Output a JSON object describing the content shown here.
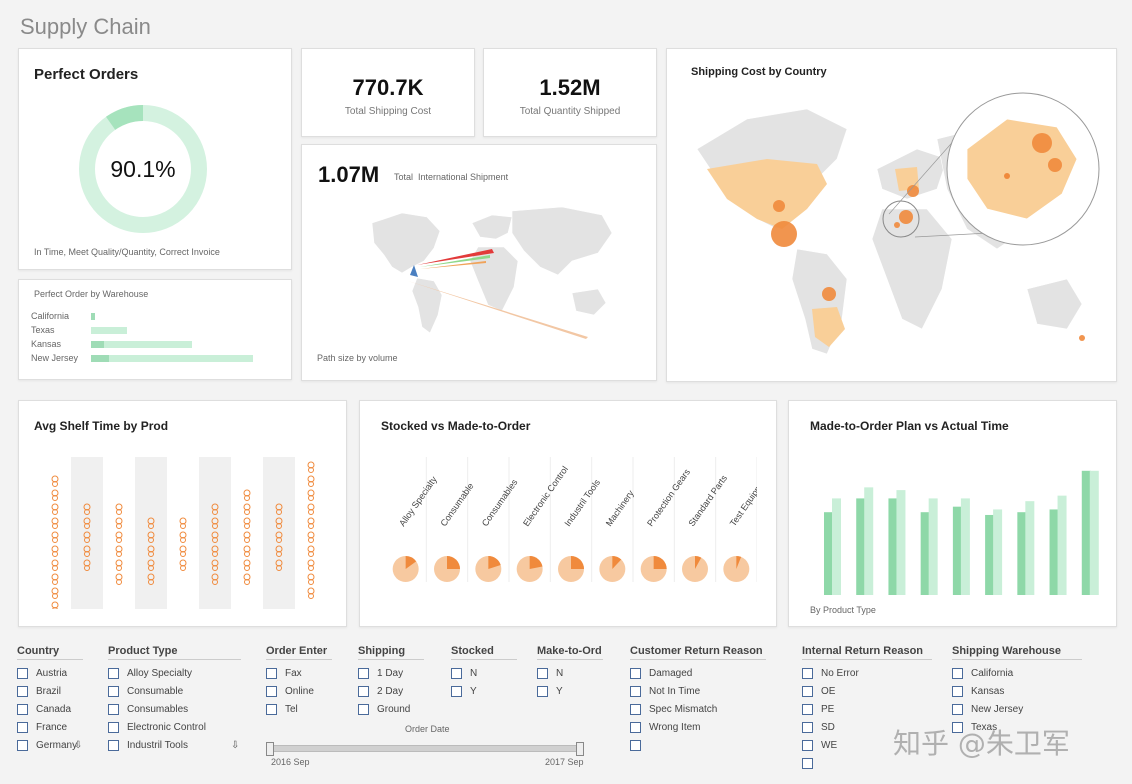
{
  "page_title": "Supply Chain",
  "perfect_orders": {
    "title": "Perfect Orders",
    "percent_label": "90.1%",
    "fraction": 0.901,
    "caption": "In Time, Meet Quality/Quantity, Correct Invoice"
  },
  "warehouse_panel": {
    "title": "Perfect Order by Warehouse",
    "rows": [
      {
        "label": "California",
        "dark": 0.02,
        "light": 0.02
      },
      {
        "label": "Texas",
        "dark": 0.0,
        "light": 0.2
      },
      {
        "label": "Kansas",
        "dark": 0.07,
        "light": 0.56
      },
      {
        "label": "New Jersey",
        "dark": 0.1,
        "light": 0.9
      }
    ]
  },
  "kpis": {
    "shipping_cost": {
      "value": "770.7K",
      "label": "Total Shipping Cost"
    },
    "quantity_shipped": {
      "value": "1.52M",
      "label": "Total Quantity Shipped"
    },
    "international": {
      "value": "1.07M",
      "label": "Total  International Shipment",
      "caption": "Path size by volume"
    }
  },
  "shipping_cost_map": {
    "title": "Shipping Cost by Country"
  },
  "shelf_time": {
    "title": "Avg Shelf Time by Prod",
    "columns": [
      [
        1,
        2,
        3,
        4,
        5,
        6,
        7,
        8,
        9,
        10
      ],
      [
        3,
        4,
        5,
        6,
        7
      ],
      [
        3,
        4,
        5,
        6,
        7,
        8
      ],
      [
        4,
        5,
        6,
        7,
        8
      ],
      [
        4,
        5,
        6,
        7
      ],
      [
        3,
        4,
        5,
        6,
        7,
        8
      ],
      [
        2,
        3,
        4,
        5,
        6,
        7,
        8
      ],
      [
        3,
        4,
        5,
        6,
        7
      ],
      [
        0,
        1,
        2,
        3,
        4,
        5,
        6,
        7,
        8,
        9
      ]
    ]
  },
  "stocked_vs_mto": {
    "title": "Stocked vs Made-to-Order",
    "categories": [
      "Alloy Specialty",
      "Consumable",
      "Consumables",
      "Electronic Control",
      "Industril Tools",
      "Machinery",
      "Protection Gears",
      "Standard Parts",
      "Test Equipm"
    ],
    "mto_share": [
      0.15,
      0.25,
      0.2,
      0.22,
      0.25,
      0.12,
      0.25,
      0.08,
      0.06
    ]
  },
  "plan_vs_actual": {
    "title": "Made-to-Order Plan vs Actual Time",
    "caption": "By Product Type",
    "plan": [
      0.6,
      0.7,
      0.7,
      0.6,
      0.64,
      0.58,
      0.6,
      0.62,
      0.9
    ],
    "actual": [
      0.7,
      0.78,
      0.76,
      0.7,
      0.7,
      0.62,
      0.68,
      0.72,
      0.9
    ]
  },
  "filters": [
    {
      "id": "country",
      "head": "Country",
      "items": [
        "Austria",
        "Brazil",
        "Canada",
        "France",
        "Germany"
      ]
    },
    {
      "id": "product-type",
      "head": "Product Type",
      "items": [
        "Alloy Specialty",
        "Consumable",
        "Consumables",
        "Electronic Control",
        "Industril Tools"
      ]
    },
    {
      "id": "order-enter",
      "head": "Order Enter",
      "items": [
        "Fax",
        "Online",
        "Tel"
      ]
    },
    {
      "id": "shipping",
      "head": "Shipping",
      "items": [
        "1 Day",
        "2 Day",
        "Ground"
      ]
    },
    {
      "id": "stocked",
      "head": "Stocked",
      "items": [
        "N",
        "Y"
      ]
    },
    {
      "id": "make-to-ord",
      "head": "Make-to-Ord",
      "items": [
        "N",
        "Y"
      ]
    },
    {
      "id": "customer-return-reason",
      "head": "Customer Return Reason",
      "items": [
        "Damaged",
        "Not In Time",
        "Spec Mismatch",
        "Wrong Item",
        ""
      ]
    },
    {
      "id": "internal-return-reason",
      "head": "Internal Return Reason",
      "items": [
        "No Error",
        "OE",
        "PE",
        "SD",
        "WE",
        ""
      ]
    },
    {
      "id": "shipping-warehouse",
      "head": "Shipping Warehouse",
      "items": [
        "California",
        "Kansas",
        "New Jersey",
        "Texas"
      ]
    }
  ],
  "order_date": {
    "label": "Order Date",
    "start": "2016 Sep",
    "end": "2017 Sep"
  },
  "watermark": "知乎 @朱卫军",
  "colors": {
    "green": "#7fd8a0",
    "green_light": "#c9efd8",
    "orange": "#f08a3c",
    "orange_light": "#f7c9a0",
    "map_land": "#e3e3e3"
  }
}
